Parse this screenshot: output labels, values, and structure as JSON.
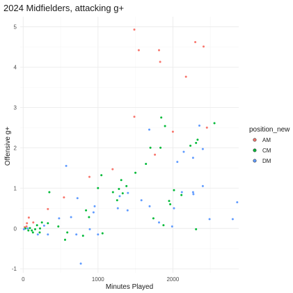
{
  "chart_data": {
    "type": "scatter",
    "title": "2024 Midfielders, attacking g+",
    "xlabel": "Minutes Played",
    "ylabel": "Offensive g+",
    "xlim": [
      -40,
      2880
    ],
    "ylim": [
      -1.1,
      5.25
    ],
    "x_ticks": [
      0,
      1000,
      2000
    ],
    "x_tick_labels": [
      "0",
      "1000",
      "2000"
    ],
    "y_ticks": [
      -1,
      0,
      1,
      2,
      3,
      4,
      5
    ],
    "y_tick_labels": [
      "-1",
      "0",
      "1",
      "2",
      "3",
      "4",
      "5"
    ],
    "grid": true,
    "legend": {
      "title": "position_new",
      "placement": "right"
    },
    "series": [
      {
        "name": "AM",
        "color": "#F8766D",
        "points": [
          [
            1485,
            4.93
          ],
          [
            1545,
            4.42
          ],
          [
            1815,
            4.42
          ],
          [
            1830,
            4.13
          ],
          [
            2300,
            4.62
          ],
          [
            2410,
            4.51
          ],
          [
            2175,
            3.76
          ],
          [
            1485,
            2.77
          ],
          [
            2000,
            2.4
          ],
          [
            2455,
            2.5
          ],
          [
            1195,
            1.47
          ],
          [
            1760,
            1.83
          ],
          [
            885,
            1.28
          ],
          [
            545,
            0.77
          ],
          [
            330,
            0.48
          ],
          [
            75,
            0.27
          ],
          [
            50,
            0.13
          ],
          [
            135,
            0.15
          ],
          [
            20,
            0.03
          ],
          [
            45,
            0.05
          ]
        ]
      },
      {
        "name": "CM",
        "color": "#00BA38",
        "points": [
          [
            1845,
            2.75
          ],
          [
            1640,
            1.6
          ],
          [
            2235,
            2.05
          ],
          [
            1895,
            2.54
          ],
          [
            2310,
            2.12
          ],
          [
            2330,
            2.2
          ],
          [
            2555,
            2.61
          ],
          [
            1700,
            2.0
          ],
          [
            1835,
            2.0
          ],
          [
            1000,
            1.0
          ],
          [
            1200,
            0.9
          ],
          [
            1310,
            1.2
          ],
          [
            1380,
            1.05
          ],
          [
            1280,
            0.98
          ],
          [
            1330,
            0.87
          ],
          [
            1255,
            0.7
          ],
          [
            1045,
            1.32
          ],
          [
            1500,
            1.38
          ],
          [
            2015,
            0.95
          ],
          [
            2115,
            0.83
          ],
          [
            1950,
            0.68
          ],
          [
            1965,
            0.6
          ],
          [
            1740,
            0.25
          ],
          [
            1875,
            0.08
          ],
          [
            2310,
            -0.02
          ],
          [
            1060,
            -0.12
          ],
          [
            840,
            0.45
          ],
          [
            880,
            0.28
          ],
          [
            590,
            -0.1
          ],
          [
            560,
            -0.28
          ],
          [
            800,
            -0.18
          ],
          [
            350,
            0.9
          ],
          [
            330,
            0.13
          ],
          [
            470,
            0.05
          ],
          [
            250,
            0.15
          ],
          [
            185,
            0.08
          ],
          [
            160,
            -0.02
          ],
          [
            225,
            0.0
          ],
          [
            220,
            -0.1
          ],
          [
            115,
            -0.05
          ],
          [
            90,
            0.01
          ],
          [
            70,
            -0.05
          ],
          [
            30,
            0.0
          ],
          [
            130,
            -0.1
          ]
        ]
      },
      {
        "name": "DM",
        "color": "#619CFF",
        "points": [
          [
            2355,
            2.55
          ],
          [
            1685,
            2.45
          ],
          [
            2145,
            1.9
          ],
          [
            2400,
            1.97
          ],
          [
            2060,
            1.65
          ],
          [
            2270,
            1.75
          ],
          [
            2400,
            1.05
          ],
          [
            575,
            1.55
          ],
          [
            1400,
            0.88
          ],
          [
            1290,
            0.8
          ],
          [
            1580,
            0.7
          ],
          [
            2120,
            0.9
          ],
          [
            2270,
            0.9
          ],
          [
            2275,
            0.85
          ],
          [
            2015,
            0.5
          ],
          [
            1690,
            0.55
          ],
          [
            2860,
            0.65
          ],
          [
            2490,
            0.23
          ],
          [
            2800,
            0.23
          ],
          [
            1395,
            0.45
          ],
          [
            1265,
            0.5
          ],
          [
            955,
            0.55
          ],
          [
            725,
            0.75
          ],
          [
            940,
            0.4
          ],
          [
            890,
            -0.02
          ],
          [
            1000,
            -0.15
          ],
          [
            1815,
            0.15
          ],
          [
            1990,
            0.05
          ],
          [
            640,
            0.28
          ],
          [
            480,
            0.25
          ],
          [
            710,
            -0.15
          ],
          [
            770,
            -0.87
          ],
          [
            330,
            -0.15
          ],
          [
            280,
            0.07
          ],
          [
            195,
            -0.15
          ],
          [
            10,
            -0.02
          ],
          [
            60,
            0.0
          ]
        ]
      }
    ]
  }
}
